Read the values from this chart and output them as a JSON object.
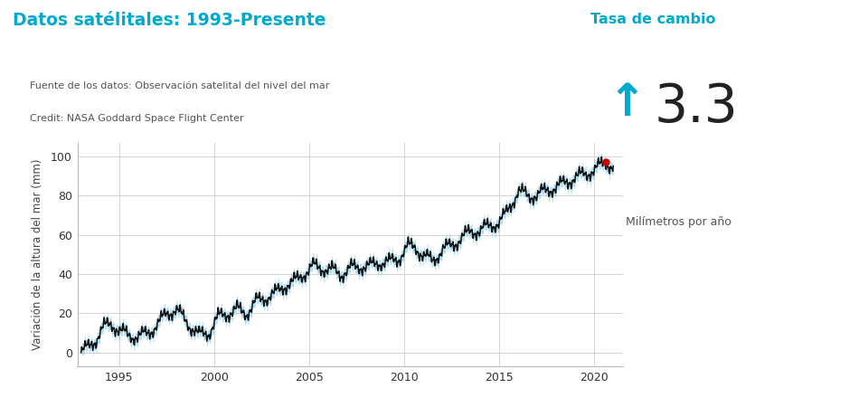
{
  "title": "Datos satélitales: 1993-Presente",
  "title_color": "#00AACC",
  "source_line1": "Fuente de los datos: Observación satelital del nivel del mar",
  "source_line2": "Credit: NASA Goddard Space Flight Center",
  "rate_label": "Tasa de cambio",
  "rate_value": "3.3",
  "rate_unit": "Milímetros por año",
  "rate_color": "#00AACC",
  "ylabel": "Variación de la altura del mar (mm)",
  "ylabel_color": "#444444",
  "xlim": [
    1992.8,
    2021.5
  ],
  "ylim": [
    -7,
    107
  ],
  "yticks": [
    0,
    20,
    40,
    60,
    80,
    100
  ],
  "xticks": [
    1995,
    2000,
    2005,
    2010,
    2015,
    2020
  ],
  "grid_color": "#cccccc",
  "line_color": "#111111",
  "band_color": "#87CEEB",
  "dot_color": "#CC0000",
  "background_color": "#ffffff"
}
